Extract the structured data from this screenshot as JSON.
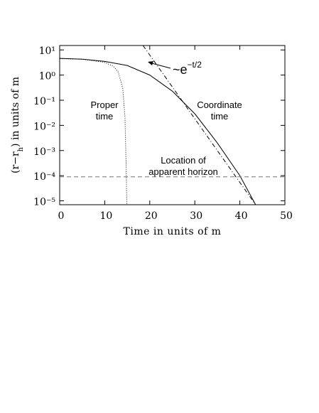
{
  "chart_data": {
    "type": "line",
    "log_y": true,
    "xlabel": "Time in units of m",
    "ylabel": [
      "(r−r",
      "h",
      ") in units of m"
    ],
    "xlim": [
      0,
      50
    ],
    "xticks": [
      0,
      10,
      20,
      30,
      40,
      50
    ],
    "ylim": [
      7e-06,
      15
    ],
    "yticks": [
      {
        "value": 10,
        "label": "10¹"
      },
      {
        "value": 1,
        "label": "10⁰"
      },
      {
        "value": 0.1,
        "label": "10⁻¹"
      },
      {
        "value": 0.01,
        "label": "10⁻²"
      },
      {
        "value": 0.001,
        "label": "10⁻³"
      },
      {
        "value": 0.0001,
        "label": "10⁻⁴"
      },
      {
        "value": 1e-05,
        "label": "10⁻⁵"
      }
    ],
    "series": [
      {
        "color": "#000000",
        "dash": "solid",
        "x": [
          0,
          5,
          10,
          15,
          20,
          25,
          30,
          35,
          40,
          43.5
        ],
        "values": [
          4.6,
          4.3,
          3.5,
          2.4,
          1.0,
          0.23,
          0.029,
          0.002,
          0.0001,
          7e-06
        ]
      },
      {
        "color": "#000000",
        "dash": "dotted",
        "x": [
          0,
          5,
          10,
          12,
          13,
          14,
          14.5,
          14.8,
          14.9
        ],
        "values": [
          4.5,
          4.3,
          3.2,
          2.2,
          1.3,
          0.3,
          0.02,
          0.0001,
          7e-06
        ]
      },
      {
        "color": "#000000",
        "dash": "dashdot",
        "x": [
          18.5,
          43.5
        ],
        "values": [
          15,
          7e-06
        ]
      },
      {
        "color": "#777777",
        "dash": "dashed",
        "x": [
          0,
          50
        ],
        "values": [
          9e-05,
          9e-05
        ]
      }
    ],
    "annotations": [
      {
        "lines": [
          "Proper",
          "time"
        ]
      },
      {
        "lines": [
          "Coordinate",
          "time"
        ]
      },
      {
        "lines": [
          "Location of",
          "apparent horizon"
        ]
      }
    ],
    "asymptote_label": [
      "~e",
      "−t/2"
    ]
  }
}
